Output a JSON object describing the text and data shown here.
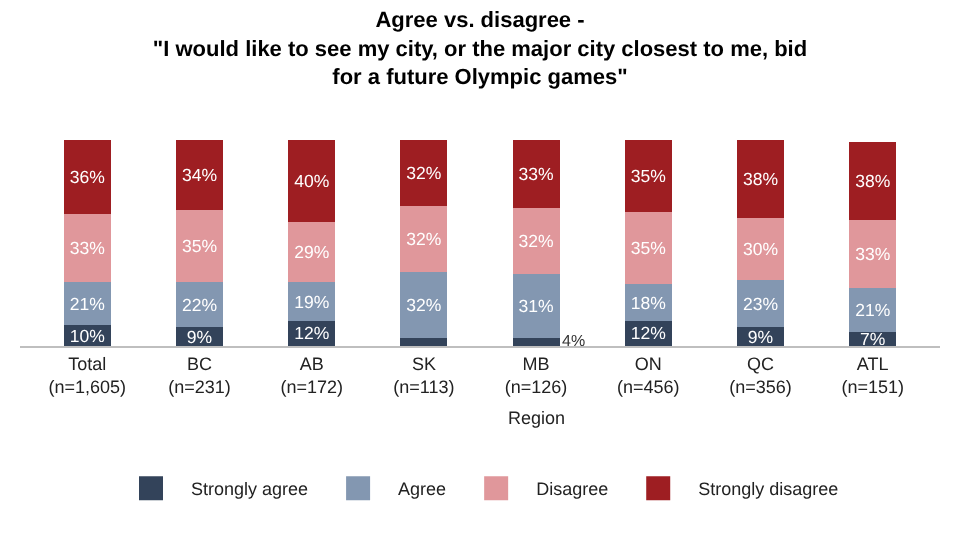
{
  "chart_data": {
    "type": "bar",
    "stacked": true,
    "title": "Agree vs. disagree -",
    "subtitle": "\"I would like to see my city, or the major city closest to me, bid for a future Olympic games\"",
    "xlabel": "Region",
    "categories": [
      "Total (n=1,605)",
      "BC (n=231)",
      "AB (n=172)",
      "SK (n=113)",
      "MB (n=126)",
      "ON (n=456)",
      "QC (n=356)",
      "ATL (n=151)"
    ],
    "series": [
      {
        "name": "Strongly agree",
        "color": "#33435a",
        "values": [
          10,
          9,
          12,
          4,
          4,
          12,
          9,
          7
        ],
        "value_labels": [
          "10%",
          "9%",
          "12%",
          null,
          "4%",
          "12%",
          "9%",
          "7%"
        ]
      },
      {
        "name": "Agree",
        "color": "#8397b1",
        "values": [
          21,
          22,
          19,
          32,
          31,
          18,
          23,
          21
        ],
        "value_labels": [
          "21%",
          "22%",
          "19%",
          "32%",
          "31%",
          "18%",
          "23%",
          "21%"
        ]
      },
      {
        "name": "Disagree",
        "color": "#e0979b",
        "values": [
          33,
          35,
          29,
          32,
          32,
          35,
          30,
          33
        ],
        "value_labels": [
          "33%",
          "35%",
          "29%",
          "32%",
          "32%",
          "35%",
          "30%",
          "33%"
        ]
      },
      {
        "name": "Strongly disagree",
        "color": "#9e1e22",
        "values": [
          36,
          34,
          40,
          32,
          33,
          35,
          38,
          38
        ],
        "value_labels": [
          "36%",
          "34%",
          "40%",
          "32%",
          "33%",
          "35%",
          "38%",
          "38%"
        ]
      }
    ],
    "legend": "bottom"
  }
}
